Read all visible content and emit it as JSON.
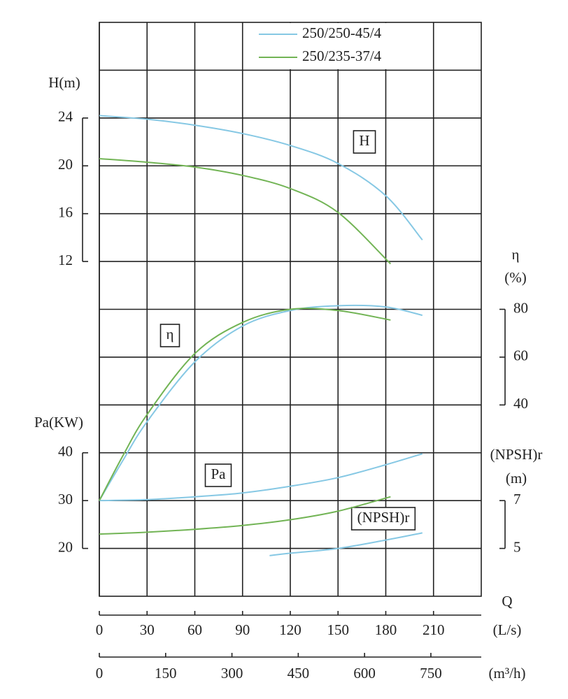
{
  "chart_data": {
    "type": "line",
    "x_label": "Q",
    "xlim": [
      0,
      240
    ],
    "xticks": [
      0,
      30,
      60,
      90,
      120,
      150,
      180,
      210
    ],
    "x_unit": "(L/s)",
    "x2lim": [
      0,
      864
    ],
    "x2ticks": [
      0,
      150,
      300,
      450,
      600,
      750
    ],
    "x2_unit": "(m³/h)",
    "axes": [
      {
        "label": [
          "H(m)"
        ],
        "box_label": "H",
        "side": "left",
        "lim": [
          -16,
          32
        ],
        "ticks": [
          12,
          16,
          20,
          24
        ]
      },
      {
        "label": [
          "η",
          "(%)"
        ],
        "box_label": "η",
        "side": "right",
        "lim": [
          -40,
          200
        ],
        "ticks": [
          40,
          60,
          80
        ]
      },
      {
        "label": [
          "Pa(KW)"
        ],
        "box_label": "Pa",
        "side": "left",
        "lim": [
          10,
          130
        ],
        "ticks": [
          20,
          30,
          40
        ]
      },
      {
        "label": [
          "(NPSH)r",
          "(m)"
        ],
        "box_label": "(NPSH)r",
        "side": "right",
        "lim": [
          3,
          27
        ],
        "ticks": [
          5,
          7
        ]
      }
    ],
    "series": [
      {
        "name": "250/250-45/4",
        "color": "#86c8e4",
        "curves": [
          {
            "x": [
              0,
              30,
              60,
              90,
              120,
              150,
              180,
              203
            ],
            "values": [
              24.2,
              23.9,
              23.4,
              22.7,
              21.7,
              20.2,
              17.5,
              13.8
            ]
          },
          {
            "x": [
              0,
              15,
              30,
              60,
              90,
              120,
              150,
              180,
              203
            ],
            "values": [
              0,
              17,
              33,
              58,
              73,
              79.5,
              81.5,
              81,
              77.5
            ]
          },
          {
            "x": [
              0,
              30,
              60,
              90,
              120,
              150,
              180,
              203
            ],
            "values": [
              30,
              30.2,
              30.8,
              31.6,
              33,
              34.8,
              37.5,
              39.8
            ]
          },
          {
            "x": [
              107,
              120,
              150,
              180,
              203
            ],
            "values": [
              4.7,
              4.8,
              5.0,
              5.35,
              5.65
            ]
          }
        ]
      },
      {
        "name": "250/235-37/4",
        "color": "#72b455",
        "curves": [
          {
            "x": [
              0,
              30,
              60,
              90,
              120,
              150,
              183
            ],
            "values": [
              20.6,
              20.3,
              19.9,
              19.2,
              18.1,
              16.1,
              11.8
            ]
          },
          {
            "x": [
              0,
              15,
              30,
              60,
              90,
              120,
              150,
              183
            ],
            "values": [
              0,
              19,
              36,
              61.5,
              74.5,
              80,
              79.5,
              75.5
            ]
          },
          {
            "x": [
              0,
              30,
              60,
              90,
              120,
              150,
              183
            ],
            "values": [
              23,
              23.4,
              24,
              24.8,
              26,
              27.8,
              30.8
            ]
          }
        ]
      }
    ]
  }
}
